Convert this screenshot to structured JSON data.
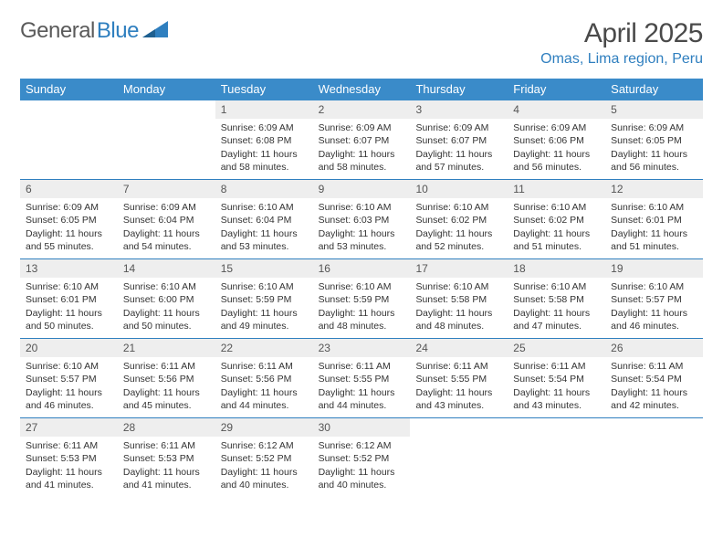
{
  "logo": {
    "text_gray": "General",
    "text_blue": "Blue",
    "shape_color": "#2f7fbf"
  },
  "header": {
    "month_title": "April 2025",
    "location": "Omas, Lima region, Peru"
  },
  "colors": {
    "header_bar": "#3a8bc9",
    "week_divider": "#2f7fbf",
    "daynum_bg": "#eeeeee",
    "text": "#333333",
    "logo_gray": "#5a5a5a",
    "logo_blue": "#2f7fbf"
  },
  "day_headers": [
    "Sunday",
    "Monday",
    "Tuesday",
    "Wednesday",
    "Thursday",
    "Friday",
    "Saturday"
  ],
  "weeks": [
    [
      {
        "empty": true
      },
      {
        "empty": true
      },
      {
        "num": "1",
        "sunrise": "Sunrise: 6:09 AM",
        "sunset": "Sunset: 6:08 PM",
        "daylight": "Daylight: 11 hours and 58 minutes."
      },
      {
        "num": "2",
        "sunrise": "Sunrise: 6:09 AM",
        "sunset": "Sunset: 6:07 PM",
        "daylight": "Daylight: 11 hours and 58 minutes."
      },
      {
        "num": "3",
        "sunrise": "Sunrise: 6:09 AM",
        "sunset": "Sunset: 6:07 PM",
        "daylight": "Daylight: 11 hours and 57 minutes."
      },
      {
        "num": "4",
        "sunrise": "Sunrise: 6:09 AM",
        "sunset": "Sunset: 6:06 PM",
        "daylight": "Daylight: 11 hours and 56 minutes."
      },
      {
        "num": "5",
        "sunrise": "Sunrise: 6:09 AM",
        "sunset": "Sunset: 6:05 PM",
        "daylight": "Daylight: 11 hours and 56 minutes."
      }
    ],
    [
      {
        "num": "6",
        "sunrise": "Sunrise: 6:09 AM",
        "sunset": "Sunset: 6:05 PM",
        "daylight": "Daylight: 11 hours and 55 minutes."
      },
      {
        "num": "7",
        "sunrise": "Sunrise: 6:09 AM",
        "sunset": "Sunset: 6:04 PM",
        "daylight": "Daylight: 11 hours and 54 minutes."
      },
      {
        "num": "8",
        "sunrise": "Sunrise: 6:10 AM",
        "sunset": "Sunset: 6:04 PM",
        "daylight": "Daylight: 11 hours and 53 minutes."
      },
      {
        "num": "9",
        "sunrise": "Sunrise: 6:10 AM",
        "sunset": "Sunset: 6:03 PM",
        "daylight": "Daylight: 11 hours and 53 minutes."
      },
      {
        "num": "10",
        "sunrise": "Sunrise: 6:10 AM",
        "sunset": "Sunset: 6:02 PM",
        "daylight": "Daylight: 11 hours and 52 minutes."
      },
      {
        "num": "11",
        "sunrise": "Sunrise: 6:10 AM",
        "sunset": "Sunset: 6:02 PM",
        "daylight": "Daylight: 11 hours and 51 minutes."
      },
      {
        "num": "12",
        "sunrise": "Sunrise: 6:10 AM",
        "sunset": "Sunset: 6:01 PM",
        "daylight": "Daylight: 11 hours and 51 minutes."
      }
    ],
    [
      {
        "num": "13",
        "sunrise": "Sunrise: 6:10 AM",
        "sunset": "Sunset: 6:01 PM",
        "daylight": "Daylight: 11 hours and 50 minutes."
      },
      {
        "num": "14",
        "sunrise": "Sunrise: 6:10 AM",
        "sunset": "Sunset: 6:00 PM",
        "daylight": "Daylight: 11 hours and 50 minutes."
      },
      {
        "num": "15",
        "sunrise": "Sunrise: 6:10 AM",
        "sunset": "Sunset: 5:59 PM",
        "daylight": "Daylight: 11 hours and 49 minutes."
      },
      {
        "num": "16",
        "sunrise": "Sunrise: 6:10 AM",
        "sunset": "Sunset: 5:59 PM",
        "daylight": "Daylight: 11 hours and 48 minutes."
      },
      {
        "num": "17",
        "sunrise": "Sunrise: 6:10 AM",
        "sunset": "Sunset: 5:58 PM",
        "daylight": "Daylight: 11 hours and 48 minutes."
      },
      {
        "num": "18",
        "sunrise": "Sunrise: 6:10 AM",
        "sunset": "Sunset: 5:58 PM",
        "daylight": "Daylight: 11 hours and 47 minutes."
      },
      {
        "num": "19",
        "sunrise": "Sunrise: 6:10 AM",
        "sunset": "Sunset: 5:57 PM",
        "daylight": "Daylight: 11 hours and 46 minutes."
      }
    ],
    [
      {
        "num": "20",
        "sunrise": "Sunrise: 6:10 AM",
        "sunset": "Sunset: 5:57 PM",
        "daylight": "Daylight: 11 hours and 46 minutes."
      },
      {
        "num": "21",
        "sunrise": "Sunrise: 6:11 AM",
        "sunset": "Sunset: 5:56 PM",
        "daylight": "Daylight: 11 hours and 45 minutes."
      },
      {
        "num": "22",
        "sunrise": "Sunrise: 6:11 AM",
        "sunset": "Sunset: 5:56 PM",
        "daylight": "Daylight: 11 hours and 44 minutes."
      },
      {
        "num": "23",
        "sunrise": "Sunrise: 6:11 AM",
        "sunset": "Sunset: 5:55 PM",
        "daylight": "Daylight: 11 hours and 44 minutes."
      },
      {
        "num": "24",
        "sunrise": "Sunrise: 6:11 AM",
        "sunset": "Sunset: 5:55 PM",
        "daylight": "Daylight: 11 hours and 43 minutes."
      },
      {
        "num": "25",
        "sunrise": "Sunrise: 6:11 AM",
        "sunset": "Sunset: 5:54 PM",
        "daylight": "Daylight: 11 hours and 43 minutes."
      },
      {
        "num": "26",
        "sunrise": "Sunrise: 6:11 AM",
        "sunset": "Sunset: 5:54 PM",
        "daylight": "Daylight: 11 hours and 42 minutes."
      }
    ],
    [
      {
        "num": "27",
        "sunrise": "Sunrise: 6:11 AM",
        "sunset": "Sunset: 5:53 PM",
        "daylight": "Daylight: 11 hours and 41 minutes."
      },
      {
        "num": "28",
        "sunrise": "Sunrise: 6:11 AM",
        "sunset": "Sunset: 5:53 PM",
        "daylight": "Daylight: 11 hours and 41 minutes."
      },
      {
        "num": "29",
        "sunrise": "Sunrise: 6:12 AM",
        "sunset": "Sunset: 5:52 PM",
        "daylight": "Daylight: 11 hours and 40 minutes."
      },
      {
        "num": "30",
        "sunrise": "Sunrise: 6:12 AM",
        "sunset": "Sunset: 5:52 PM",
        "daylight": "Daylight: 11 hours and 40 minutes."
      },
      {
        "empty": true
      },
      {
        "empty": true
      },
      {
        "empty": true
      }
    ]
  ]
}
